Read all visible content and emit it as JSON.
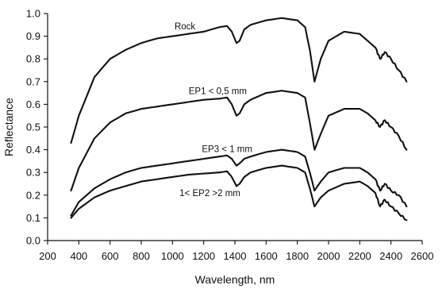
{
  "chart_data": {
    "type": "line",
    "xlabel": "Wavelength, nm",
    "ylabel": "Reflectance",
    "xlim": [
      200,
      2600
    ],
    "ylim": [
      0,
      1.0
    ],
    "xticks": [
      200,
      400,
      600,
      800,
      1000,
      1200,
      1400,
      1600,
      1800,
      2000,
      2200,
      2400,
      2600
    ],
    "xtick_labels": [
      "200",
      "400",
      "600",
      "800",
      "1000",
      "1200",
      "1400",
      "1600",
      "1800",
      "2000",
      "2200",
      "2400",
      "2600"
    ],
    "yticks": [
      0,
      0.1,
      0.2,
      0.3,
      0.4,
      0.5,
      0.6,
      0.7,
      0.8,
      0.9,
      1.0
    ],
    "ytick_labels": [
      "0.0",
      "0.1",
      "0.2",
      "0.3",
      "0.4",
      "0.5",
      "0.6",
      "0.7",
      "0.8",
      "0.9",
      "1.0"
    ],
    "grid": false,
    "series": [
      {
        "name": "Rock",
        "x": [
          350,
          400,
          500,
          600,
          700,
          800,
          900,
          1000,
          1100,
          1200,
          1300,
          1350,
          1380,
          1410,
          1430,
          1460,
          1500,
          1600,
          1700,
          1800,
          1850,
          1880,
          1910,
          1950,
          2000,
          2100,
          2200,
          2250,
          2300,
          2330,
          2360,
          2400,
          2450,
          2500
        ],
        "y": [
          0.43,
          0.55,
          0.72,
          0.8,
          0.84,
          0.87,
          0.89,
          0.9,
          0.91,
          0.92,
          0.94,
          0.945,
          0.92,
          0.87,
          0.88,
          0.93,
          0.95,
          0.97,
          0.98,
          0.97,
          0.94,
          0.84,
          0.7,
          0.8,
          0.88,
          0.92,
          0.91,
          0.88,
          0.85,
          0.8,
          0.83,
          0.8,
          0.75,
          0.7
        ]
      },
      {
        "name": "EP1 < 0,5 mm",
        "x": [
          350,
          400,
          500,
          600,
          700,
          800,
          900,
          1000,
          1100,
          1200,
          1300,
          1350,
          1380,
          1410,
          1430,
          1460,
          1500,
          1600,
          1700,
          1800,
          1850,
          1880,
          1910,
          1950,
          2000,
          2100,
          2200,
          2250,
          2300,
          2330,
          2360,
          2400,
          2450,
          2500
        ],
        "y": [
          0.22,
          0.32,
          0.45,
          0.52,
          0.56,
          0.58,
          0.59,
          0.6,
          0.61,
          0.62,
          0.625,
          0.63,
          0.6,
          0.55,
          0.56,
          0.6,
          0.62,
          0.65,
          0.66,
          0.65,
          0.63,
          0.52,
          0.4,
          0.47,
          0.55,
          0.58,
          0.58,
          0.56,
          0.53,
          0.5,
          0.53,
          0.5,
          0.46,
          0.4
        ]
      },
      {
        "name": "EP3 < 1 mm",
        "x": [
          350,
          400,
          500,
          600,
          700,
          800,
          900,
          1000,
          1100,
          1200,
          1300,
          1350,
          1380,
          1410,
          1430,
          1460,
          1500,
          1600,
          1700,
          1800,
          1850,
          1880,
          1910,
          1950,
          2000,
          2100,
          2200,
          2250,
          2300,
          2330,
          2360,
          2400,
          2450,
          2500
        ],
        "y": [
          0.11,
          0.17,
          0.23,
          0.27,
          0.3,
          0.32,
          0.33,
          0.34,
          0.35,
          0.36,
          0.37,
          0.375,
          0.36,
          0.33,
          0.34,
          0.36,
          0.37,
          0.39,
          0.4,
          0.39,
          0.37,
          0.3,
          0.22,
          0.26,
          0.3,
          0.32,
          0.32,
          0.3,
          0.27,
          0.22,
          0.25,
          0.22,
          0.2,
          0.15
        ]
      },
      {
        "name": "1< EP2 >2 mm",
        "x": [
          350,
          400,
          500,
          600,
          700,
          800,
          900,
          1000,
          1100,
          1200,
          1300,
          1350,
          1380,
          1410,
          1430,
          1460,
          1500,
          1600,
          1700,
          1800,
          1850,
          1880,
          1910,
          1950,
          2000,
          2100,
          2200,
          2250,
          2300,
          2330,
          2360,
          2400,
          2450,
          2500
        ],
        "y": [
          0.1,
          0.14,
          0.19,
          0.22,
          0.24,
          0.26,
          0.27,
          0.28,
          0.29,
          0.295,
          0.3,
          0.305,
          0.28,
          0.24,
          0.25,
          0.28,
          0.3,
          0.32,
          0.33,
          0.32,
          0.3,
          0.23,
          0.15,
          0.19,
          0.22,
          0.25,
          0.26,
          0.24,
          0.21,
          0.15,
          0.18,
          0.15,
          0.12,
          0.09
        ]
      }
    ],
    "annotations": [
      {
        "text": "Rock",
        "x": 1080,
        "y": 0.93
      },
      {
        "text": "EP1 < 0,5 mm",
        "x": 1290,
        "y": 0.645
      },
      {
        "text": "EP3 < 1 mm",
        "x": 1350,
        "y": 0.39
      },
      {
        "text": "1< EP2 >2 mm",
        "x": 1240,
        "y": 0.195
      }
    ]
  }
}
